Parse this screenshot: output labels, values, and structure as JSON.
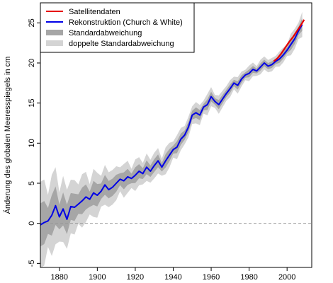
{
  "chart_data": {
    "type": "line",
    "title": "",
    "xlabel": "",
    "ylabel": "Änderung des globalen Meeresspiegels in cm",
    "xlim": [
      1870,
      2013
    ],
    "ylim": [
      -5.5,
      27.5
    ],
    "x_ticks": [
      1880,
      1900,
      1920,
      1940,
      1960,
      1980,
      2000
    ],
    "y_ticks": [
      -5,
      0,
      5,
      10,
      15,
      20,
      25
    ],
    "grid": false,
    "legend_position": "top-left",
    "reference_line": {
      "y": 0,
      "style": "dashed"
    },
    "legend": [
      {
        "key": "sat",
        "label": "Satellitendaten",
        "type": "line"
      },
      {
        "key": "rec",
        "label": "Rekonstruktion (Church & White)",
        "type": "line"
      },
      {
        "key": "sd1",
        "label": "Standardabweichung",
        "type": "band"
      },
      {
        "key": "sd2",
        "label": "doppelte Standardabweichung",
        "type": "band"
      }
    ],
    "series": [
      {
        "key": "rec",
        "name": "Rekonstruktion (Church & White)",
        "color": "#0000e6",
        "x": [
          1870,
          1872,
          1874,
          1876,
          1878,
          1880,
          1882,
          1884,
          1886,
          1888,
          1890,
          1892,
          1894,
          1896,
          1898,
          1900,
          1902,
          1904,
          1906,
          1908,
          1910,
          1912,
          1914,
          1916,
          1918,
          1920,
          1922,
          1924,
          1926,
          1928,
          1930,
          1932,
          1934,
          1936,
          1938,
          1940,
          1942,
          1944,
          1946,
          1948,
          1950,
          1952,
          1954,
          1956,
          1958,
          1960,
          1962,
          1964,
          1966,
          1968,
          1970,
          1972,
          1974,
          1976,
          1978,
          1980,
          1982,
          1984,
          1986,
          1988,
          1990,
          1992,
          1994,
          1996,
          1998,
          2000,
          2002,
          2004,
          2006,
          2008
        ],
        "values": [
          -0.2,
          0.1,
          0.3,
          1.0,
          2.2,
          0.8,
          1.8,
          0.5,
          2.1,
          2.0,
          2.4,
          2.8,
          3.3,
          3.0,
          3.8,
          3.5,
          4.0,
          4.8,
          4.2,
          4.5,
          5.0,
          5.5,
          5.3,
          5.8,
          5.6,
          6.0,
          6.5,
          6.2,
          7.0,
          6.5,
          7.2,
          7.8,
          7.0,
          7.8,
          8.5,
          9.2,
          9.5,
          10.5,
          11.0,
          12.0,
          13.5,
          13.8,
          13.5,
          14.5,
          14.8,
          15.8,
          15.2,
          14.8,
          15.5,
          16.2,
          16.8,
          17.5,
          17.2,
          18.0,
          18.5,
          18.7,
          19.2,
          19.0,
          19.5,
          20.0,
          19.6,
          19.8,
          20.2,
          20.5,
          21.0,
          21.6,
          22.3,
          23.0,
          24.0,
          24.8
        ],
        "sd1": [
          2.4,
          2.4,
          2.3,
          2.2,
          2.1,
          2.0,
          1.9,
          1.8,
          1.7,
          1.6,
          1.5,
          1.45,
          1.4,
          1.35,
          1.3,
          1.25,
          1.2,
          1.15,
          1.1,
          1.05,
          1.0,
          0.95,
          0.9,
          0.9,
          0.85,
          0.85,
          0.8,
          0.8,
          0.8,
          0.75,
          0.75,
          0.75,
          0.7,
          0.7,
          0.7,
          0.7,
          0.65,
          0.65,
          0.65,
          0.6,
          0.6,
          0.6,
          0.6,
          0.55,
          0.55,
          0.55,
          0.55,
          0.5,
          0.5,
          0.5,
          0.5,
          0.45,
          0.45,
          0.45,
          0.45,
          0.4,
          0.4,
          0.4,
          0.4,
          0.4,
          0.4,
          0.4,
          0.4,
          0.4,
          0.45,
          0.5,
          0.55,
          0.6,
          0.65,
          0.7
        ],
        "sd2": [
          4.8,
          4.8,
          4.6,
          4.4,
          4.2,
          4.0,
          3.8,
          3.6,
          3.4,
          3.2,
          3.0,
          2.9,
          2.8,
          2.7,
          2.6,
          2.5,
          2.4,
          2.3,
          2.2,
          2.1,
          2.0,
          1.9,
          1.8,
          1.8,
          1.7,
          1.7,
          1.6,
          1.6,
          1.6,
          1.5,
          1.5,
          1.5,
          1.4,
          1.4,
          1.4,
          1.4,
          1.3,
          1.3,
          1.3,
          1.2,
          1.2,
          1.2,
          1.2,
          1.1,
          1.1,
          1.1,
          1.1,
          1.0,
          1.0,
          1.0,
          1.0,
          0.9,
          0.9,
          0.9,
          0.9,
          0.8,
          0.8,
          0.8,
          0.8,
          0.8,
          0.8,
          0.8,
          0.8,
          0.8,
          0.9,
          1.0,
          1.1,
          1.2,
          1.3,
          1.4
        ]
      },
      {
        "key": "sat",
        "name": "Satellitendaten",
        "color": "#e60000",
        "x": [
          1993,
          1995,
          1997,
          1999,
          2001,
          2003,
          2005,
          2007,
          2009
        ],
        "values": [
          20.2,
          20.6,
          21.2,
          21.9,
          22.6,
          23.2,
          23.9,
          24.6,
          25.4
        ]
      }
    ],
    "colors": {
      "sd1_band": "#a6a6a6",
      "sd2_band": "#d4d4d4",
      "zero_line": "#999999"
    }
  }
}
